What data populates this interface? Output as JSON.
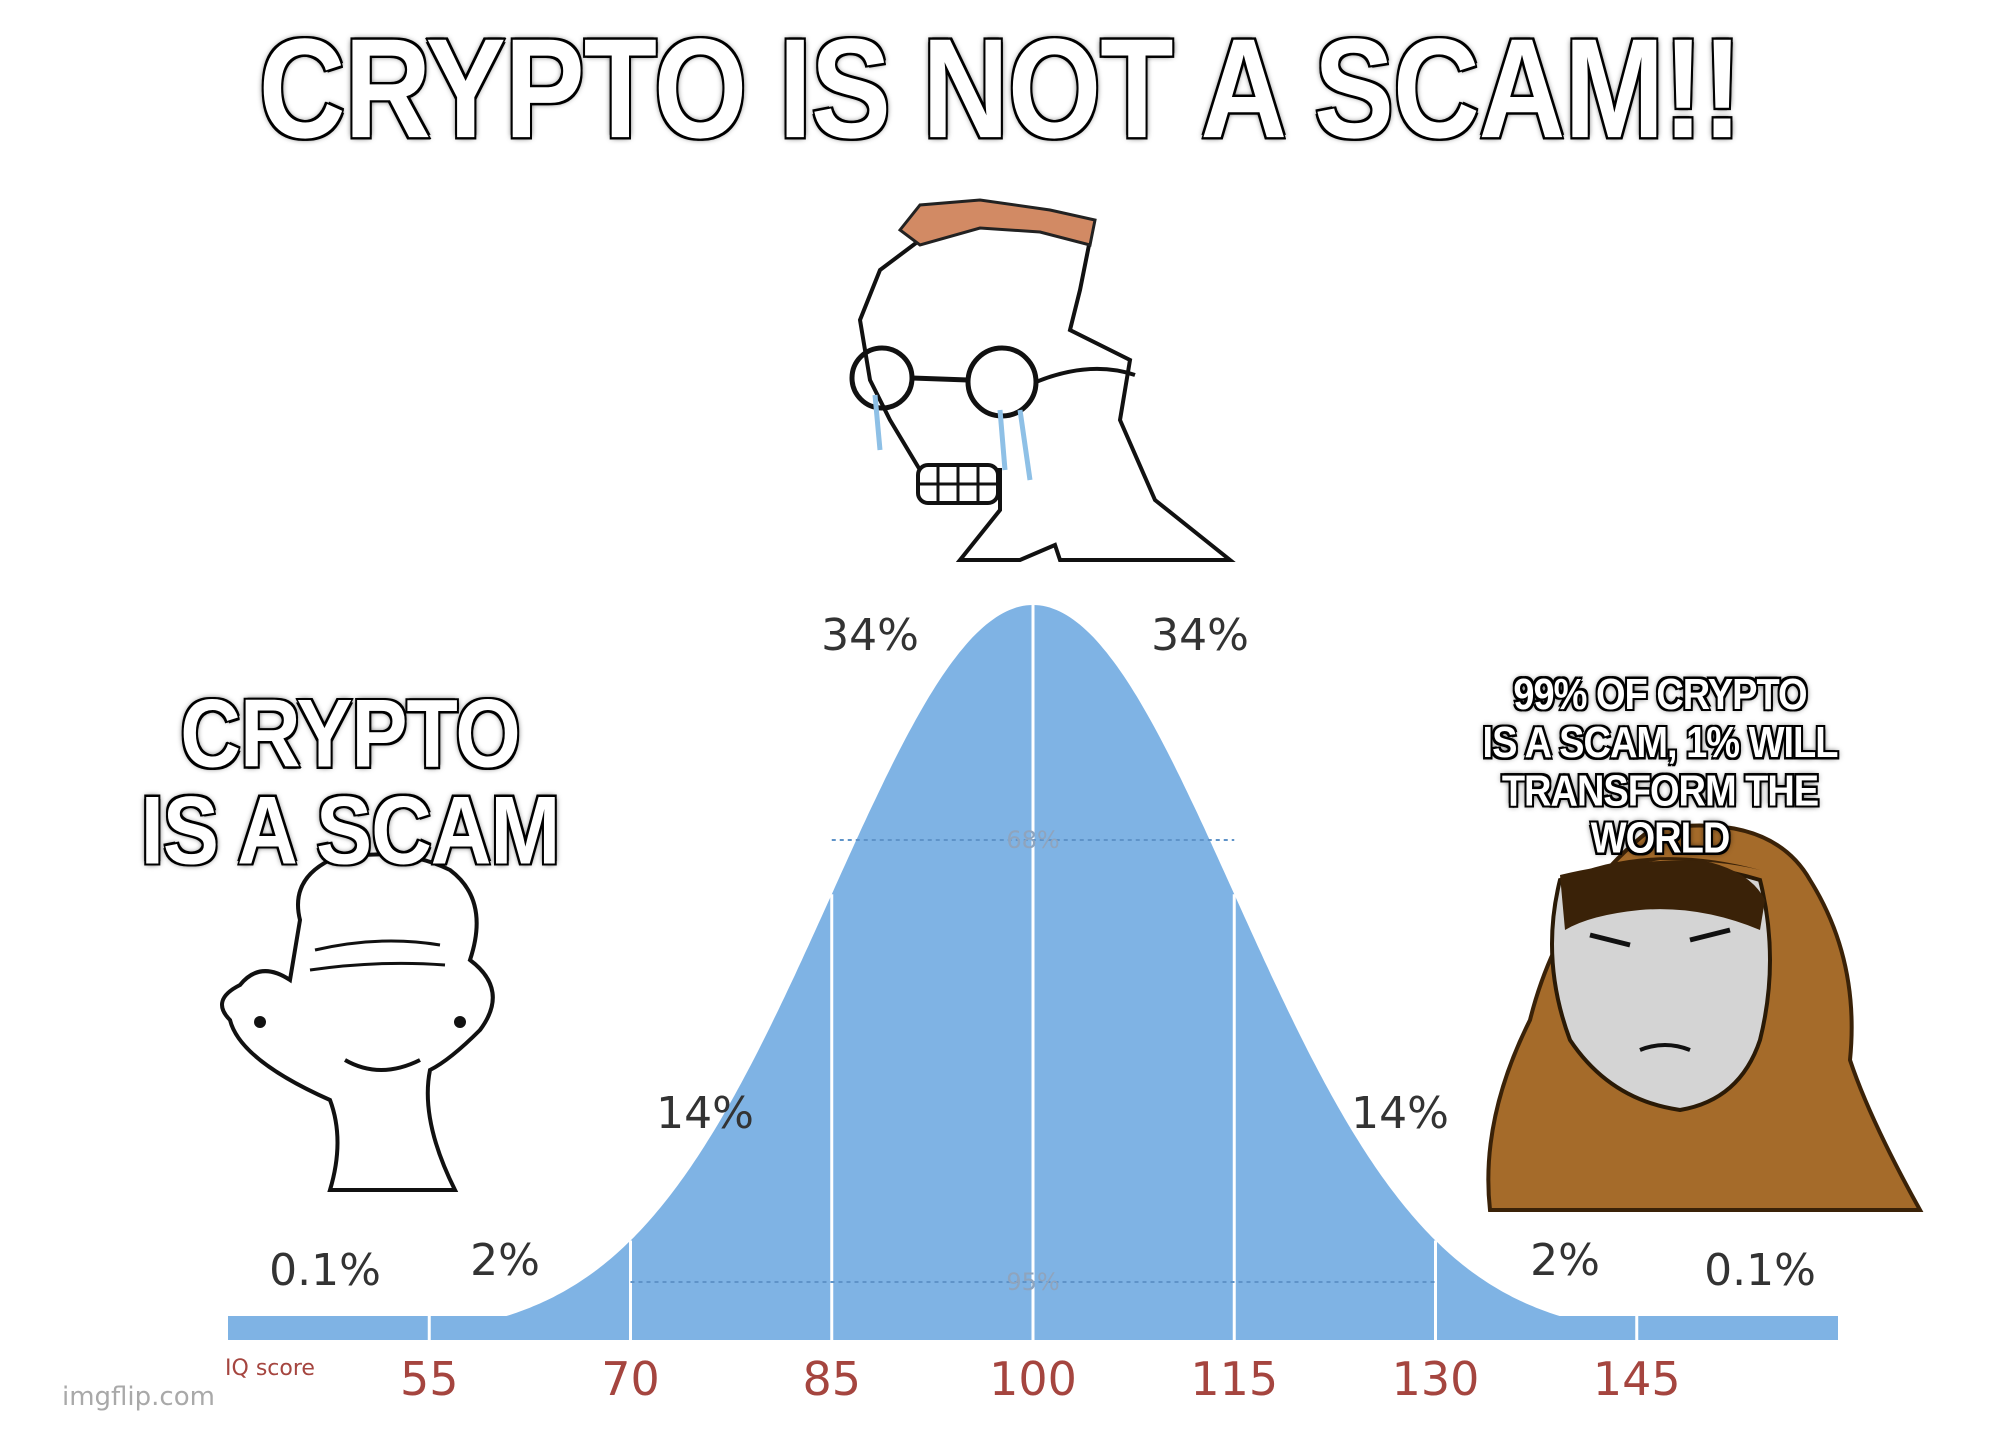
{
  "captions": {
    "top": "CRYPTO IS NOT A SCAM!!",
    "left_line1": "CRYPTO",
    "left_line2": "IS A SCAM",
    "right_line1": "99% OF CRYPTO",
    "right_line2": "IS A SCAM, 1% WILL",
    "right_line3": "TRANSFORM THE WORLD"
  },
  "watermark": "imgflip.com",
  "colors": {
    "curve_fill": "#7fb3e4",
    "band_lines": "#ffffff",
    "tick_label": "#a5453f",
    "caption_fill": "#ffffff",
    "caption_stroke": "#000000"
  },
  "characters": [
    {
      "name": "low-iq-wojak",
      "icon": "smiling-simple-face-icon"
    },
    {
      "name": "crying-midwit-wojak",
      "icon": "crying-glasses-face-icon"
    },
    {
      "name": "hooded-high-iq-wojak",
      "icon": "hooded-face-icon"
    }
  ],
  "chart_data": {
    "type": "area",
    "distribution": "normal",
    "mean": 100,
    "sd": 15,
    "xlabel": "IQ score",
    "xlim": [
      40,
      160
    ],
    "xticks": [
      55,
      70,
      85,
      100,
      115,
      130,
      145
    ],
    "tick_labels": [
      "55",
      "70",
      "85",
      "100",
      "115",
      "130",
      "145"
    ],
    "segments": [
      {
        "from": 40,
        "to": 55,
        "label": "0.1%"
      },
      {
        "from": 55,
        "to": 70,
        "label": "2%"
      },
      {
        "from": 70,
        "to": 85,
        "label": "14%"
      },
      {
        "from": 85,
        "to": 100,
        "label": "34%"
      },
      {
        "from": 100,
        "to": 115,
        "label": "34%"
      },
      {
        "from": 115,
        "to": 130,
        "label": "14%"
      },
      {
        "from": 130,
        "to": 145,
        "label": "2%"
      },
      {
        "from": 145,
        "to": 160,
        "label": "0.1%"
      }
    ],
    "spans": [
      {
        "from": 85,
        "to": 115,
        "label": "68%"
      },
      {
        "from": 70,
        "to": 130,
        "label": "95%"
      }
    ]
  }
}
